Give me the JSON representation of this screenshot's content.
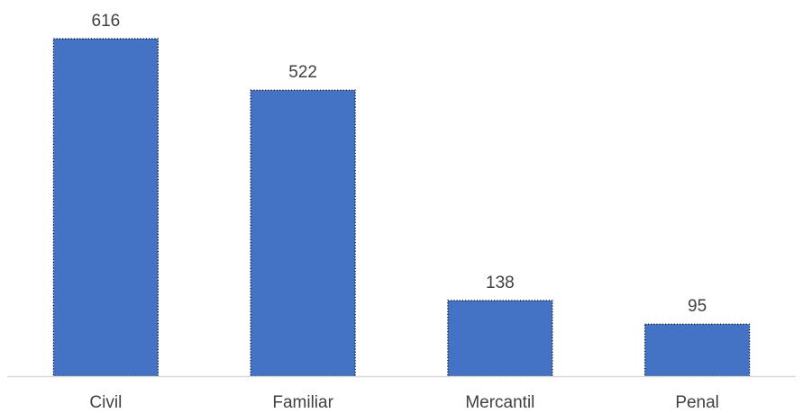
{
  "chart_data": {
    "type": "bar",
    "categories": [
      "Civil",
      "Familiar",
      "Mercantil",
      "Penal"
    ],
    "values": [
      616,
      522,
      138,
      95
    ],
    "data_labels": [
      "616",
      "522",
      "138",
      "95"
    ],
    "title": "",
    "xlabel": "",
    "ylabel": "",
    "ylim": [
      0,
      616
    ],
    "grid": false,
    "legend": "none",
    "colors": {
      "bar": "#4472C4",
      "bar_outline": "#000000",
      "axis": "#D9D9D9",
      "text": "#404040"
    }
  }
}
